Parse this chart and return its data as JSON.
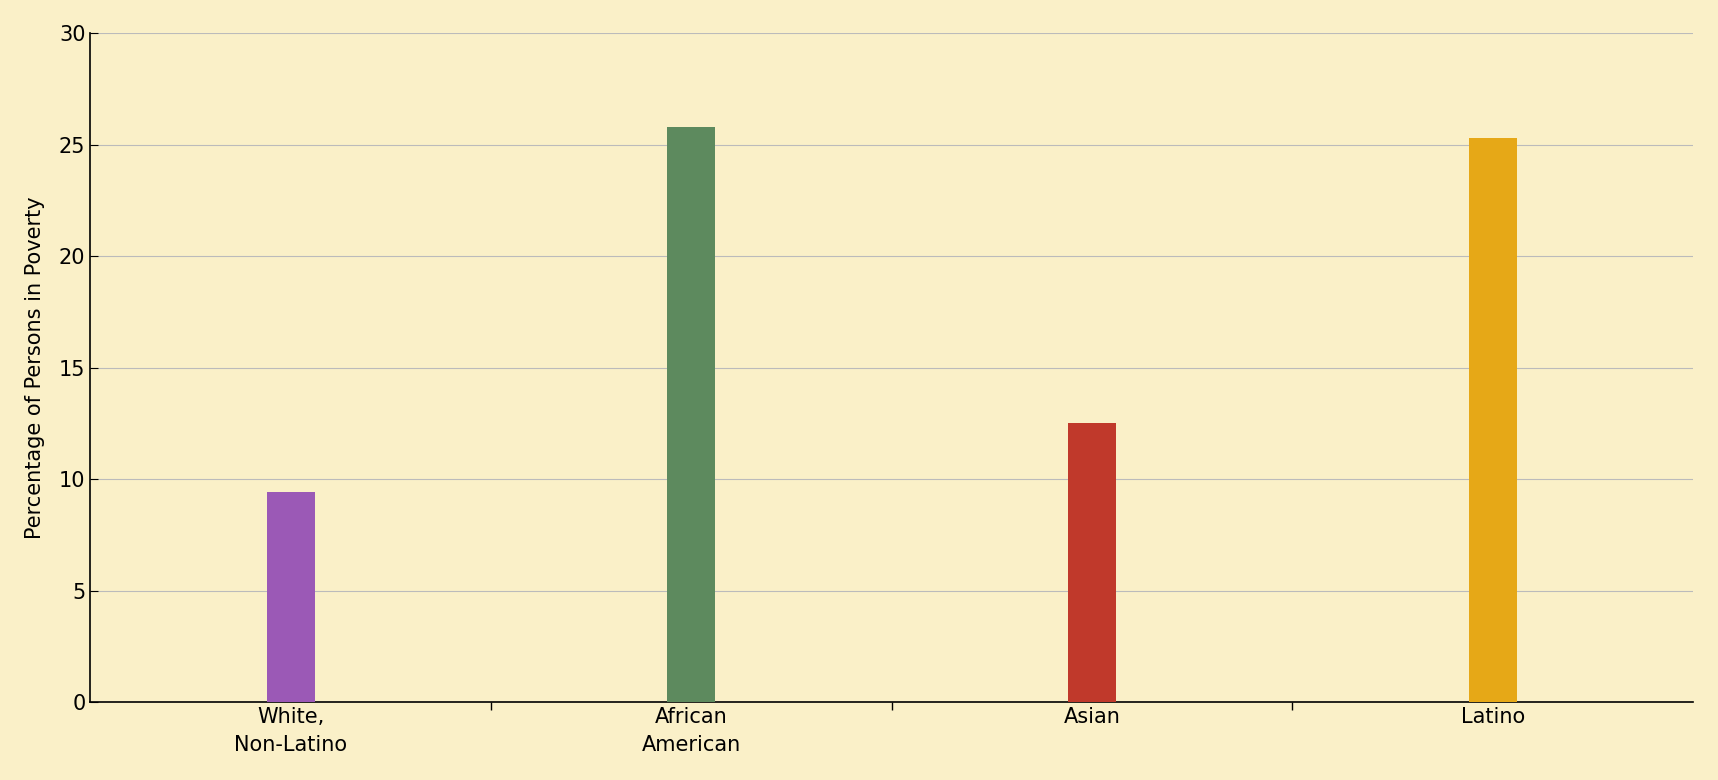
{
  "categories": [
    "White,\nNon-Latino",
    "African\nAmerican",
    "Asian",
    "Latino"
  ],
  "values": [
    9.4,
    25.8,
    12.5,
    25.3
  ],
  "bar_colors": [
    "#9B59B6",
    "#5D8A5E",
    "#C0392B",
    "#E6A817"
  ],
  "ylabel": "Percentage of Persons in Poverty",
  "ylim": [
    0,
    30
  ],
  "yticks": [
    0,
    5,
    10,
    15,
    20,
    25,
    30
  ],
  "background_color": "#FAF0C8",
  "grid_color": "#BBBBBB",
  "bar_width": 0.12,
  "tick_fontsize": 15,
  "label_fontsize": 15
}
